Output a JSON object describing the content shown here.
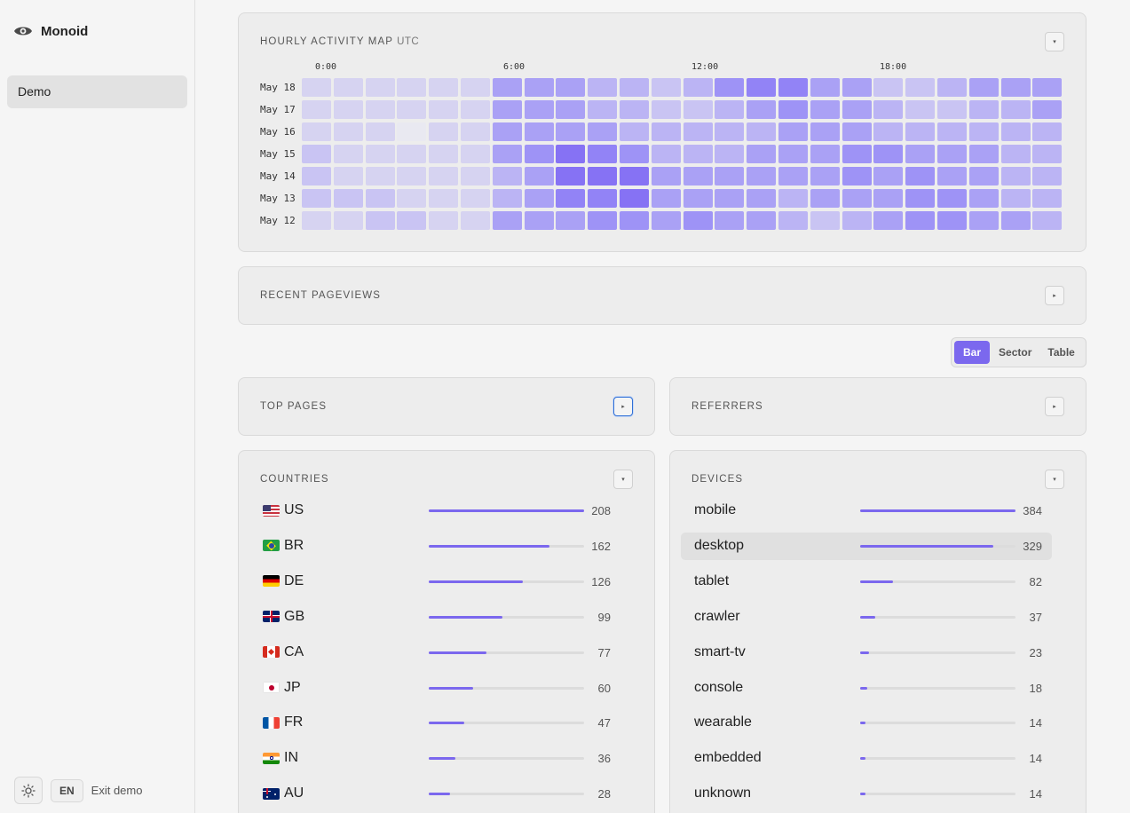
{
  "brand": {
    "name": "Monoid"
  },
  "nav": {
    "items": [
      {
        "label": "Demo"
      }
    ]
  },
  "footer": {
    "lang": "EN",
    "exit": "Exit demo"
  },
  "heatmap": {
    "title": "HOURLY ACTIVITY MAP",
    "timezone": "UTC",
    "hour_labels": [
      "0:00",
      "6:00",
      "12:00",
      "18:00"
    ],
    "days": [
      "May 18",
      "May 17",
      "May 16",
      "May 15",
      "May 14",
      "May 13",
      "May 12"
    ],
    "levels": [
      [
        1,
        1,
        1,
        1,
        1,
        1,
        4,
        4,
        4,
        3,
        3,
        2,
        3,
        5,
        6,
        6,
        4,
        4,
        2,
        2,
        3,
        4,
        4,
        4
      ],
      [
        1,
        1,
        1,
        1,
        1,
        1,
        4,
        4,
        4,
        3,
        3,
        2,
        2,
        3,
        4,
        5,
        4,
        4,
        3,
        2,
        2,
        3,
        3,
        4
      ],
      [
        1,
        1,
        1,
        0,
        1,
        1,
        4,
        4,
        4,
        4,
        3,
        3,
        3,
        3,
        3,
        4,
        4,
        4,
        3,
        3,
        3,
        3,
        3,
        3
      ],
      [
        2,
        1,
        1,
        1,
        1,
        1,
        4,
        5,
        7,
        6,
        5,
        3,
        3,
        3,
        4,
        4,
        4,
        5,
        5,
        4,
        4,
        4,
        3,
        3
      ],
      [
        2,
        1,
        1,
        1,
        1,
        1,
        3,
        4,
        7,
        7,
        7,
        4,
        4,
        4,
        4,
        4,
        4,
        5,
        4,
        5,
        4,
        4,
        3,
        3
      ],
      [
        2,
        2,
        2,
        1,
        1,
        1,
        3,
        4,
        6,
        6,
        7,
        4,
        4,
        4,
        4,
        3,
        4,
        4,
        4,
        5,
        5,
        4,
        3,
        3
      ],
      [
        1,
        1,
        2,
        2,
        1,
        1,
        4,
        4,
        4,
        5,
        5,
        4,
        5,
        4,
        4,
        3,
        2,
        3,
        4,
        5,
        5,
        4,
        4,
        3
      ]
    ]
  },
  "recent_pageviews": {
    "title": "RECENT PAGEVIEWS"
  },
  "view_toggle": {
    "options": [
      "Bar",
      "Sector",
      "Table"
    ],
    "selected": "Bar"
  },
  "top_pages": {
    "title": "TOP PAGES"
  },
  "referrers": {
    "title": "REFERRERS"
  },
  "countries": {
    "title": "COUNTRIES",
    "max": 208,
    "rows": [
      {
        "code": "US",
        "value": 208
      },
      {
        "code": "BR",
        "value": 162
      },
      {
        "code": "DE",
        "value": 126
      },
      {
        "code": "GB",
        "value": 99
      },
      {
        "code": "CA",
        "value": 77
      },
      {
        "code": "JP",
        "value": 60
      },
      {
        "code": "FR",
        "value": 47
      },
      {
        "code": "IN",
        "value": 36
      },
      {
        "code": "AU",
        "value": 28
      }
    ]
  },
  "devices": {
    "title": "DEVICES",
    "max": 384,
    "highlighted": "desktop",
    "rows": [
      {
        "label": "mobile",
        "value": 384
      },
      {
        "label": "desktop",
        "value": 329
      },
      {
        "label": "tablet",
        "value": 82
      },
      {
        "label": "crawler",
        "value": 37
      },
      {
        "label": "smart-tv",
        "value": 23
      },
      {
        "label": "console",
        "value": 18
      },
      {
        "label": "wearable",
        "value": 14
      },
      {
        "label": "embedded",
        "value": 14
      },
      {
        "label": "unknown",
        "value": 14
      }
    ]
  },
  "colors": {
    "accent": "#7b68ee",
    "heat_scale": [
      "#e9e9f1",
      "#d6d3f1",
      "#c9c4f3",
      "#bbb4f4",
      "#aaa1f5",
      "#9e93f6",
      "#9283f6",
      "#8672f4"
    ]
  }
}
